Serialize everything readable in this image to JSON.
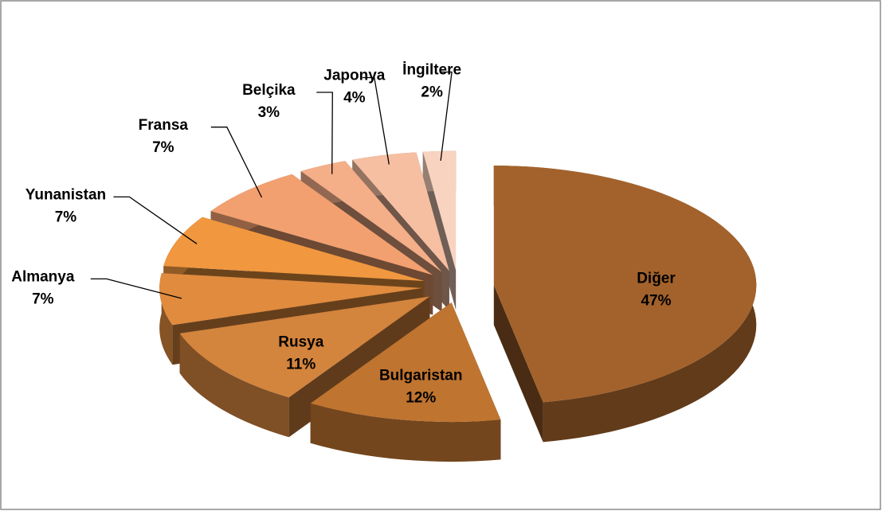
{
  "chart_data": {
    "type": "pie",
    "categories": [
      "Diğer",
      "Bulgaristan",
      "Rusya",
      "Almanya",
      "Yunanistan",
      "Fransa",
      "Belçika",
      "Japonya",
      "İngiltere"
    ],
    "values": [
      47,
      12,
      11,
      7,
      7,
      7,
      3,
      4,
      2
    ],
    "value_labels": [
      "47%",
      "12%",
      "11%",
      "7%",
      "7%",
      "7%",
      "3%",
      "4%",
      "2%"
    ],
    "colors": [
      "#a3622b",
      "#bf7430",
      "#d3843d",
      "#e08b3e",
      "#f0973f",
      "#f2a070",
      "#f4ae88",
      "#f6bfa2",
      "#f8d3c0"
    ]
  }
}
